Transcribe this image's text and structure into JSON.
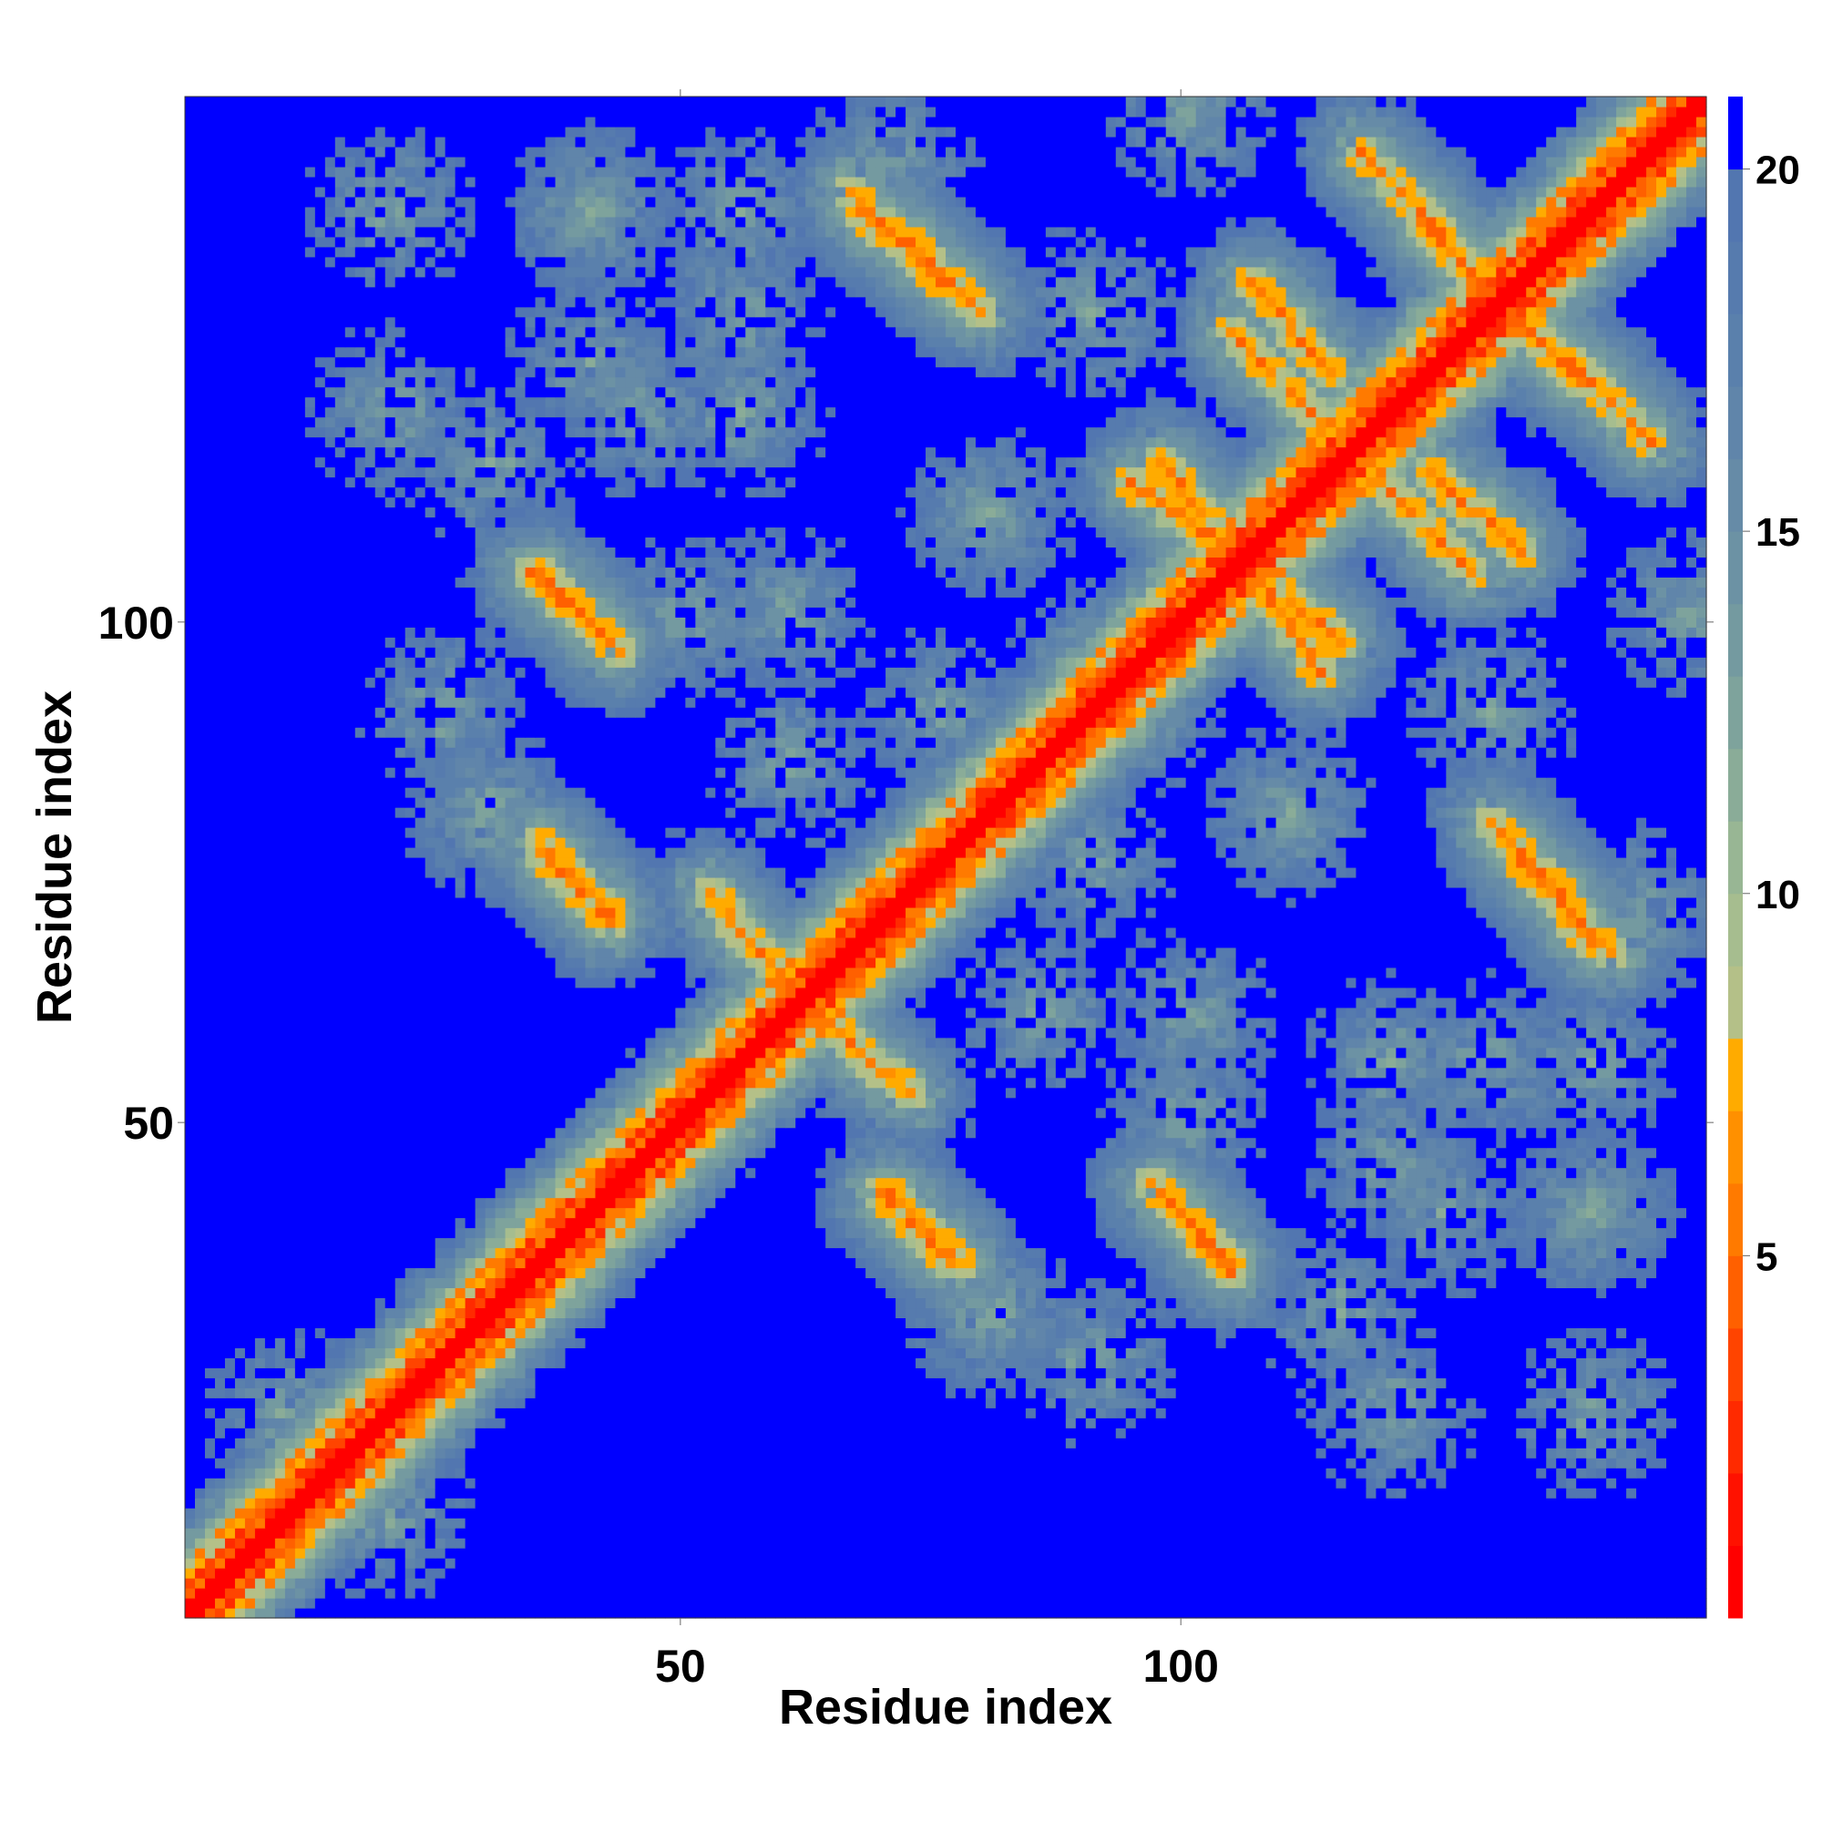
{
  "chart_data": {
    "type": "heatmap",
    "title": "",
    "xlabel": "Residue index",
    "ylabel": "Residue index",
    "x_range": [
      1,
      152
    ],
    "y_range": [
      1,
      152
    ],
    "xticks": [
      50,
      100
    ],
    "yticks": [
      50,
      100
    ],
    "colorbar": {
      "range": [
        0,
        21
      ],
      "ticks": [
        5,
        10,
        15,
        20
      ],
      "levels": [
        {
          "upper": 1,
          "color": "#ff0000"
        },
        {
          "upper": 2,
          "color": "#ff1100"
        },
        {
          "upper": 3,
          "color": "#ff2a00"
        },
        {
          "upper": 4,
          "color": "#ff4400"
        },
        {
          "upper": 5,
          "color": "#ff6000"
        },
        {
          "upper": 6,
          "color": "#ff7a00"
        },
        {
          "upper": 7,
          "color": "#ff9000"
        },
        {
          "upper": 8,
          "color": "#ffab00"
        },
        {
          "upper": 9,
          "color": "#b4c088"
        },
        {
          "upper": 10,
          "color": "#a6bd8f"
        },
        {
          "upper": 11,
          "color": "#98b694"
        },
        {
          "upper": 12,
          "color": "#8aac98"
        },
        {
          "upper": 13,
          "color": "#7ea39c"
        },
        {
          "upper": 14,
          "color": "#749aa0"
        },
        {
          "upper": 15,
          "color": "#6c92a4"
        },
        {
          "upper": 16,
          "color": "#668ba7"
        },
        {
          "upper": 17,
          "color": "#6085aa"
        },
        {
          "upper": 18,
          "color": "#5a80ac"
        },
        {
          "upper": 19,
          "color": "#567bae"
        },
        {
          "upper": 20,
          "color": "#5276b0"
        },
        {
          "upper": 21,
          "color": "#0000ff"
        }
      ]
    },
    "diagonal_value": 0,
    "background_value": 21,
    "contact_features": [
      {
        "kind": "anti",
        "x": [
          62,
          73
        ],
        "y": [
          62,
          53
        ]
      },
      {
        "kind": "anti",
        "x": [
          36,
          44
        ],
        "y": [
          105,
          97
        ]
      },
      {
        "kind": "anti",
        "x": [
          36,
          43
        ],
        "y": [
          77,
          70
        ]
      },
      {
        "kind": "anti",
        "x": [
          67,
          78
        ],
        "y": [
          143,
          133
        ]
      },
      {
        "kind": "anti",
        "x": [
          71,
          78
        ],
        "y": [
          43,
          36
        ]
      },
      {
        "kind": "anti",
        "x": [
          98,
          105
        ],
        "y": [
          43,
          35
        ]
      },
      {
        "kind": "anti",
        "x": [
          107,
          115
        ],
        "y": [
          134,
          125
        ]
      },
      {
        "kind": "anti",
        "x": [
          118,
          130
        ],
        "y": [
          147,
          134
        ]
      },
      {
        "kind": "anti",
        "x": [
          119,
          129
        ],
        "y": [
          115,
          105
        ]
      },
      {
        "kind": "anti",
        "x": [
          130,
          141
        ],
        "y": [
          133,
          124
        ]
      },
      {
        "kind": "anti",
        "x": [
          131,
          141
        ],
        "y": [
          80,
          68
        ]
      },
      {
        "kind": "anti",
        "x": [
          98,
          105
        ],
        "y": [
          116,
          107
        ]
      },
      {
        "kind": "anti",
        "x": [
          108,
          114
        ],
        "y": [
          104,
          95
        ]
      }
    ],
    "grid": false,
    "legend": "colorbar-right"
  }
}
